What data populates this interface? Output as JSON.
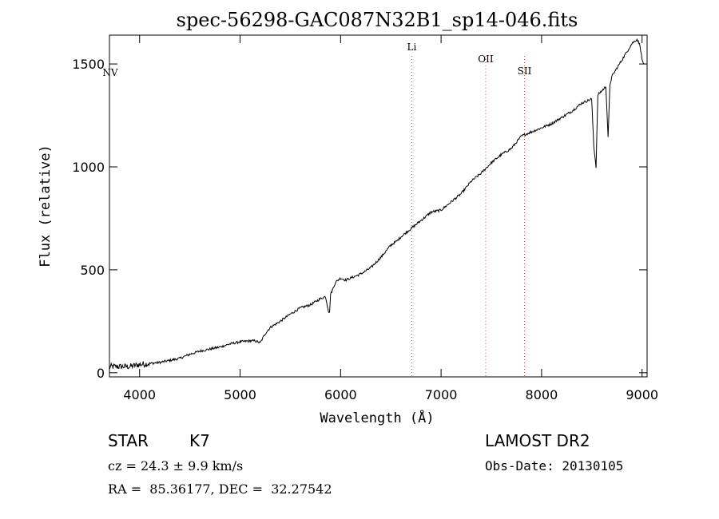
{
  "chart_data": {
    "type": "line",
    "title": "spec-56298-GAC087N32B1_sp14-046.fits",
    "xlabel": "Wavelength (Å)",
    "ylabel": "Flux (relative)",
    "xlim": [
      3700,
      9050
    ],
    "ylim": [
      -20,
      1640
    ],
    "x_ticks": [
      4000,
      5000,
      6000,
      7000,
      8000,
      9000
    ],
    "y_ticks": [
      0,
      500,
      1000,
      1500
    ],
    "grid": false,
    "line_color": "#000000",
    "marker_color": "#e05050",
    "series": [
      {
        "x": [
          3700,
          3800,
          3900,
          4000,
          4100,
          4200,
          4300,
          4400,
          4500,
          4600,
          4700,
          4800,
          4900,
          5000,
          5100,
          5150,
          5200,
          5250,
          5300,
          5400,
          5500,
          5600,
          5700,
          5800,
          5850,
          5880,
          5890,
          5900,
          5950,
          6000,
          6050,
          6100,
          6200,
          6300,
          6400,
          6500,
          6560,
          6600,
          6700,
          6800,
          6900,
          7000,
          7100,
          7200,
          7300,
          7400,
          7500,
          7600,
          7700,
          7800,
          7900,
          8000,
          8100,
          8200,
          8300,
          8400,
          8498,
          8520,
          8542,
          8560,
          8600,
          8640,
          8662,
          8680,
          8700,
          8800,
          8850,
          8900,
          8950,
          8980,
          9000,
          9020
        ],
        "y": [
          30,
          30,
          30,
          40,
          45,
          50,
          60,
          70,
          90,
          105,
          115,
          125,
          140,
          150,
          155,
          155,
          145,
          190,
          220,
          250,
          285,
          315,
          330,
          360,
          370,
          300,
          290,
          380,
          440,
          460,
          450,
          460,
          480,
          510,
          560,
          620,
          640,
          660,
          700,
          740,
          780,
          790,
          830,
          870,
          930,
          970,
          1020,
          1060,
          1090,
          1150,
          1170,
          1190,
          1210,
          1240,
          1270,
          1310,
          1330,
          1100,
          1000,
          1350,
          1370,
          1390,
          1140,
          1400,
          1440,
          1520,
          1560,
          1600,
          1620,
          1590,
          1520,
          1500
        ]
      }
    ],
    "line_markers": [
      {
        "label": "Li",
        "x": 6708
      },
      {
        "label": "OII",
        "x": 7444
      },
      {
        "label": "SII",
        "x": 7830
      }
    ],
    "edge_label": "NV"
  },
  "info": {
    "object_class": "STAR",
    "subclass": "K7",
    "survey": "LAMOST DR2",
    "cz": "cz = 24.3 ± 9.9 km/s",
    "obs_date": "Obs-Date: 20130105",
    "coords": "RA =  85.36177, DEC =  32.27542"
  }
}
